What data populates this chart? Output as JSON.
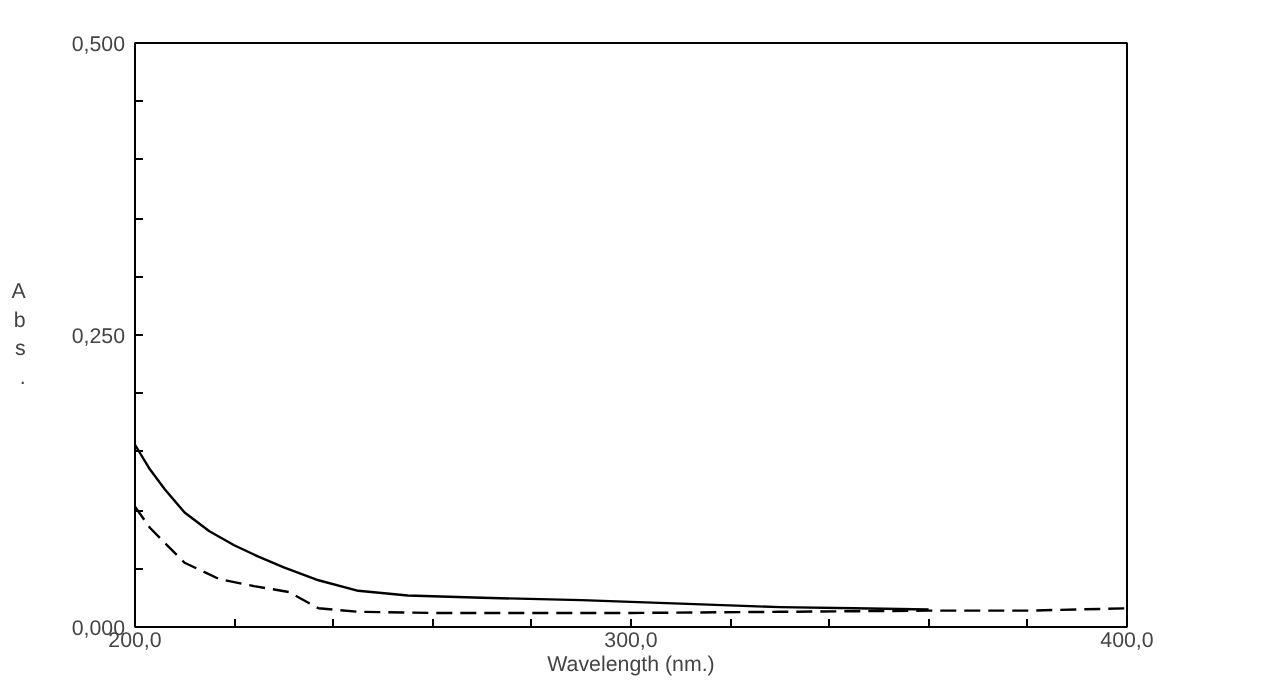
{
  "chart_data": {
    "type": "line",
    "xlabel": "Wavelength (nm.)",
    "ylabel": "Abs.",
    "xlim": [
      200,
      400
    ],
    "ylim": [
      0,
      0.5
    ],
    "xticks": [
      {
        "value": 200,
        "label": "200,0"
      },
      {
        "value": 220,
        "label": null
      },
      {
        "value": 240,
        "label": null
      },
      {
        "value": 260,
        "label": null
      },
      {
        "value": 280,
        "label": null
      },
      {
        "value": 300,
        "label": "300,0"
      },
      {
        "value": 320,
        "label": null
      },
      {
        "value": 340,
        "label": null
      },
      {
        "value": 360,
        "label": null
      },
      {
        "value": 380,
        "label": null
      },
      {
        "value": 400,
        "label": "400,0"
      }
    ],
    "yticks": [
      {
        "value": 0,
        "label": "0,000"
      },
      {
        "value": 0.05,
        "label": null
      },
      {
        "value": 0.1,
        "label": null
      },
      {
        "value": 0.15,
        "label": null
      },
      {
        "value": 0.2,
        "label": null
      },
      {
        "value": 0.25,
        "label": "0,250"
      },
      {
        "value": 0.3,
        "label": null
      },
      {
        "value": 0.35,
        "label": null
      },
      {
        "value": 0.4,
        "label": null
      },
      {
        "value": 0.45,
        "label": null
      },
      {
        "value": 0.5,
        "label": "0,500"
      }
    ],
    "grid": false,
    "series": [
      {
        "color": "#000000",
        "line_style": "solid",
        "x": [
          200,
          203,
          206,
          210,
          215,
          220,
          225,
          230,
          237,
          245,
          255,
          270,
          290,
          310,
          330,
          345,
          360
        ],
        "values": [
          0.156,
          0.135,
          0.118,
          0.098,
          0.082,
          0.07,
          0.06,
          0.051,
          0.04,
          0.031,
          0.027,
          0.025,
          0.023,
          0.02,
          0.017,
          0.016,
          0.015
        ]
      },
      {
        "color": "#000000",
        "line_style": "dashed",
        "x": [
          200,
          203,
          206,
          210,
          217,
          224,
          231,
          237,
          245,
          260,
          280,
          300,
          330,
          360,
          380,
          400
        ],
        "values": [
          0.103,
          0.085,
          0.072,
          0.055,
          0.041,
          0.035,
          0.03,
          0.016,
          0.013,
          0.012,
          0.012,
          0.012,
          0.013,
          0.014,
          0.014,
          0.016
        ]
      }
    ]
  }
}
